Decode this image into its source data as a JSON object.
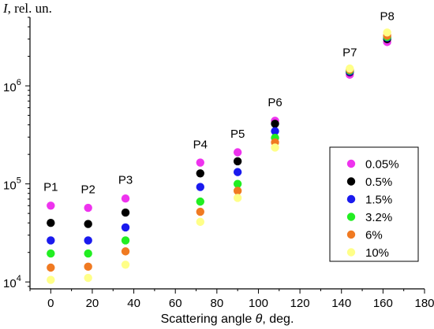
{
  "chart_data": {
    "type": "scatter",
    "title": "",
    "xlabel_prefix": "Scattering angle ",
    "xlabel_symbol": "θ",
    "xlabel_suffix": ", deg.",
    "ylabel_symbol": "I",
    "ylabel_suffix": ", rel. un.",
    "xlim": [
      -10,
      180
    ],
    "ylim": [
      8500,
      5000000
    ],
    "yscale": "log",
    "x_ticks": [
      0,
      20,
      40,
      60,
      80,
      100,
      120,
      140,
      160,
      180
    ],
    "y_ticks": [
      {
        "value": 10000,
        "base": "10",
        "exp": "4"
      },
      {
        "value": 100000,
        "base": "10",
        "exp": "5"
      },
      {
        "value": 1000000,
        "base": "10",
        "exp": "6"
      }
    ],
    "legend_position": "right",
    "point_labels": [
      {
        "text": "P1",
        "x": 0,
        "y": 85000
      },
      {
        "text": "P2",
        "x": 18,
        "y": 80000
      },
      {
        "text": "P3",
        "x": 36,
        "y": 100000
      },
      {
        "text": "P4",
        "x": 72,
        "y": 230000
      },
      {
        "text": "P5",
        "x": 90,
        "y": 295000
      },
      {
        "text": "P6",
        "x": 108,
        "y": 620000
      },
      {
        "text": "P7",
        "x": 144,
        "y": 2000000
      },
      {
        "text": "P8",
        "x": 162,
        "y": 4700000
      }
    ],
    "series": [
      {
        "name": "0.05%",
        "color": "#ee33ee",
        "x": [
          0,
          18,
          36,
          72,
          90,
          108,
          144,
          162
        ],
        "y": [
          60000,
          57000,
          71000,
          165000,
          210000,
          440000,
          1300000,
          2800000
        ]
      },
      {
        "name": "0.5%",
        "color": "#000000",
        "x": [
          0,
          18,
          36,
          72,
          90,
          108,
          144,
          162
        ],
        "y": [
          40000,
          39000,
          51000,
          128000,
          170000,
          410000,
          1380000,
          3000000
        ]
      },
      {
        "name": "1.5%",
        "color": "#1a1aee",
        "x": [
          0,
          18,
          36,
          72,
          90,
          108,
          144,
          162
        ],
        "y": [
          26500,
          26500,
          36000,
          93000,
          132000,
          345000,
          1400000,
          3100000
        ]
      },
      {
        "name": "3.2%",
        "color": "#22ee22",
        "x": [
          0,
          18,
          36,
          72,
          90,
          108,
          144,
          162
        ],
        "y": [
          19500,
          19500,
          26500,
          66000,
          100000,
          295000,
          1430000,
          3150000
        ]
      },
      {
        "name": "6%",
        "color": "#f07a22",
        "x": [
          0,
          18,
          36,
          72,
          90,
          108,
          144,
          162
        ],
        "y": [
          14000,
          14300,
          20500,
          52000,
          85000,
          265000,
          1460000,
          3250000
        ]
      },
      {
        "name": "10%",
        "color": "#ffff88",
        "x": [
          0,
          18,
          36,
          72,
          90,
          108,
          144,
          162
        ],
        "y": [
          10500,
          11000,
          15000,
          41000,
          72000,
          235000,
          1500000,
          3500000
        ]
      }
    ]
  }
}
